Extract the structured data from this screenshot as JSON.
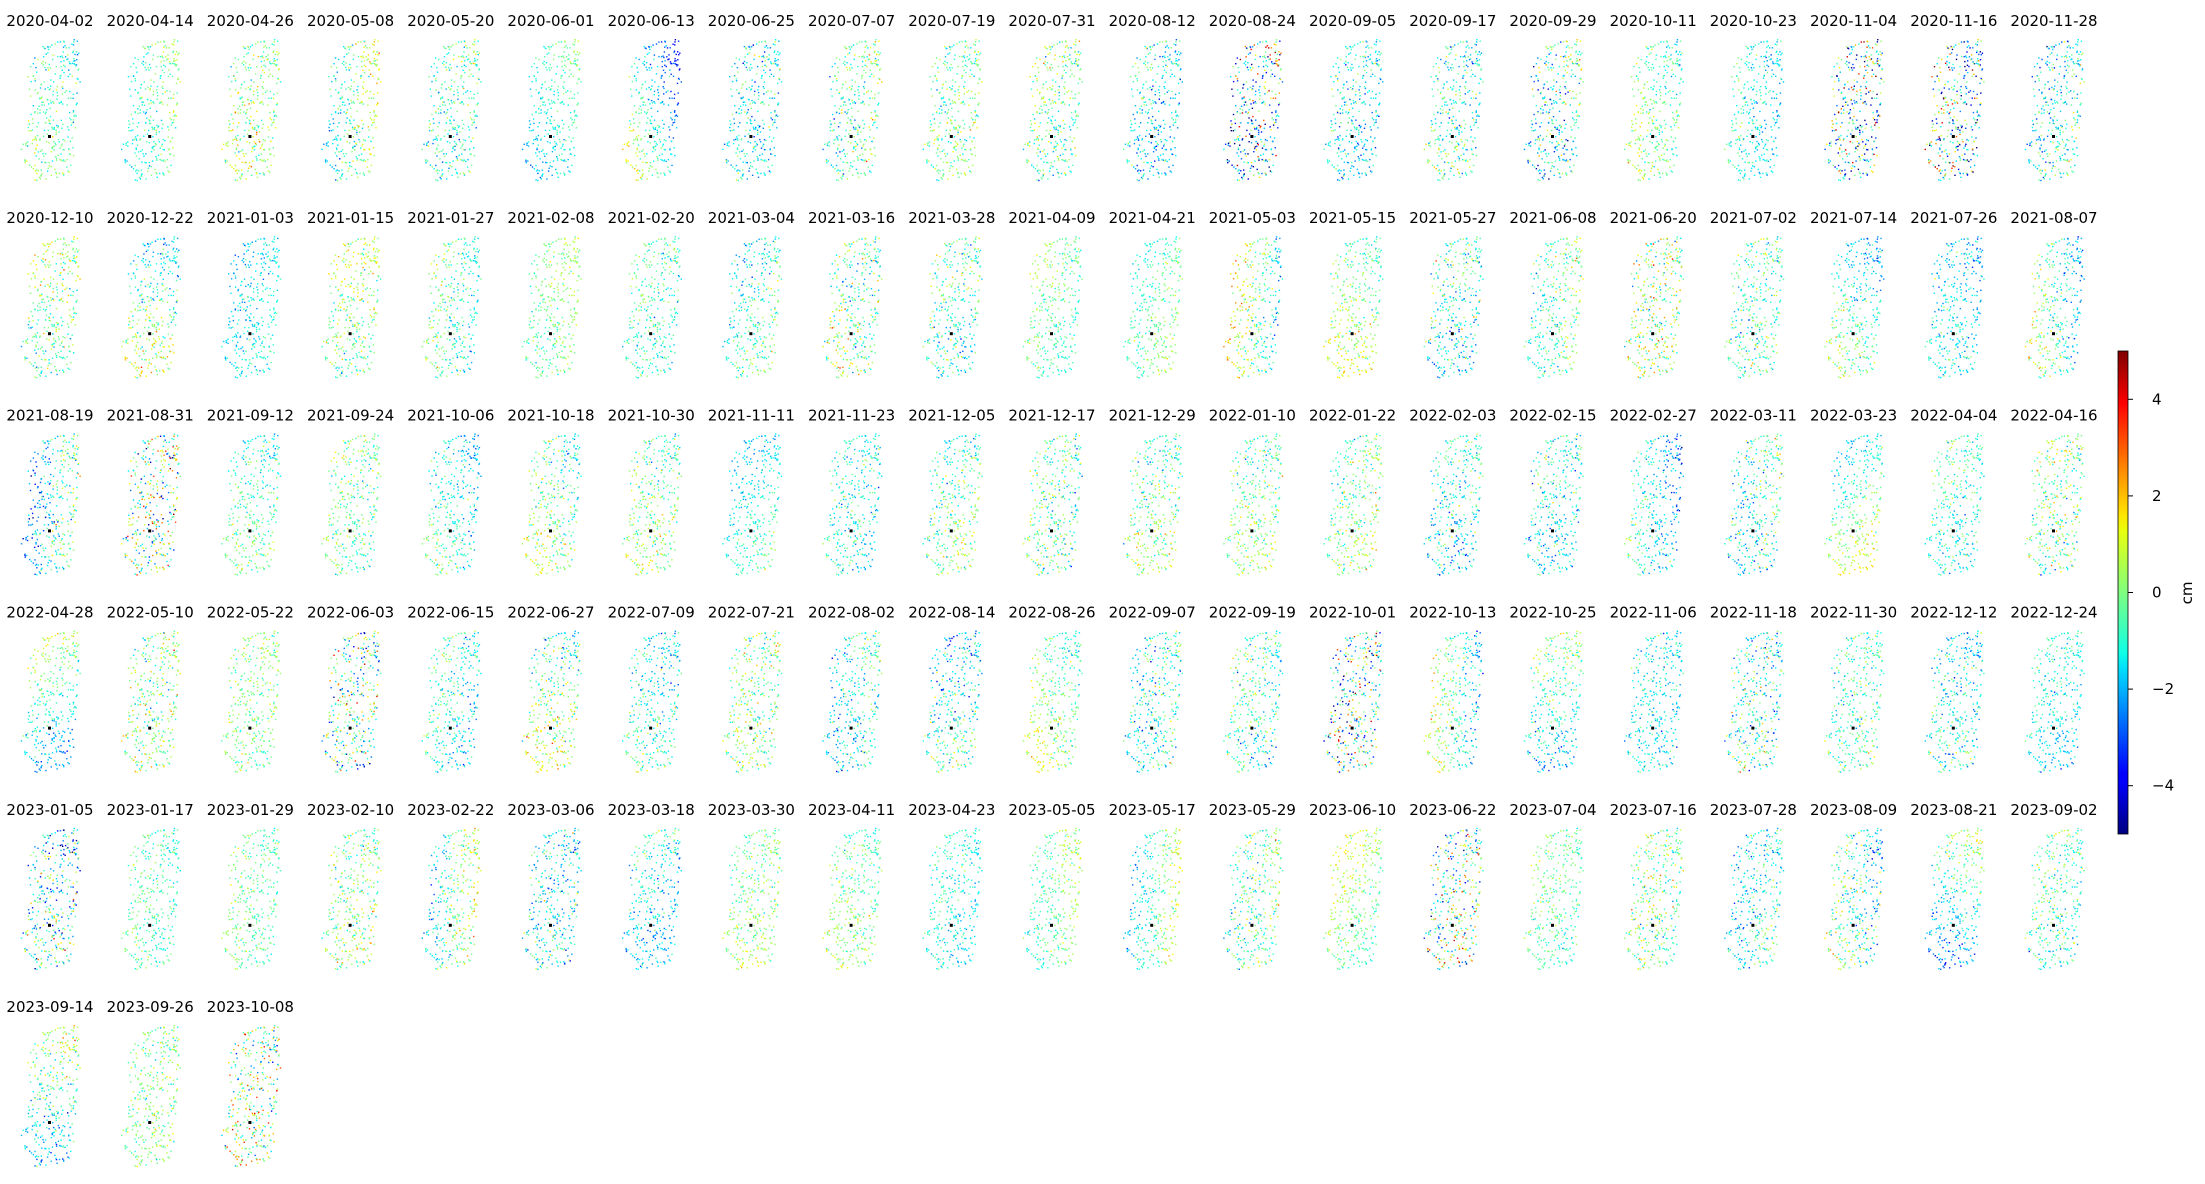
{
  "chart_data": {
    "type": "scatter",
    "panel_dates": [
      "2020-04-02",
      "2020-04-14",
      "2020-04-26",
      "2020-05-08",
      "2020-05-20",
      "2020-06-01",
      "2020-06-13",
      "2020-06-25",
      "2020-07-07",
      "2020-07-19",
      "2020-07-31",
      "2020-08-12",
      "2020-08-24",
      "2020-09-05",
      "2020-09-17",
      "2020-09-29",
      "2020-10-11",
      "2020-10-23",
      "2020-11-04",
      "2020-11-16",
      "2020-11-28",
      "2020-12-10",
      "2020-12-22",
      "2021-01-03",
      "2021-01-15",
      "2021-01-27",
      "2021-02-08",
      "2021-02-20",
      "2021-03-04",
      "2021-03-16",
      "2021-03-28",
      "2021-04-09",
      "2021-04-21",
      "2021-05-03",
      "2021-05-15",
      "2021-05-27",
      "2021-06-08",
      "2021-06-20",
      "2021-07-02",
      "2021-07-14",
      "2021-07-26",
      "2021-08-07",
      "2021-08-19",
      "2021-08-31",
      "2021-09-12",
      "2021-09-24",
      "2021-10-06",
      "2021-10-18",
      "2021-10-30",
      "2021-11-11",
      "2021-11-23",
      "2021-12-05",
      "2021-12-17",
      "2021-12-29",
      "2022-01-10",
      "2022-01-22",
      "2022-02-03",
      "2022-02-15",
      "2022-02-27",
      "2022-03-11",
      "2022-03-23",
      "2022-04-04",
      "2022-04-16",
      "2022-04-28",
      "2022-05-10",
      "2022-05-22",
      "2022-06-03",
      "2022-06-15",
      "2022-06-27",
      "2022-07-09",
      "2022-07-21",
      "2022-08-02",
      "2022-08-14",
      "2022-08-26",
      "2022-09-07",
      "2022-09-19",
      "2022-10-01",
      "2022-10-13",
      "2022-10-25",
      "2022-11-06",
      "2022-11-18",
      "2022-11-30",
      "2022-12-12",
      "2022-12-24",
      "2023-01-05",
      "2023-01-17",
      "2023-01-29",
      "2023-02-10",
      "2023-02-22",
      "2023-03-06",
      "2023-03-18",
      "2023-03-30",
      "2023-04-11",
      "2023-04-23",
      "2023-05-05",
      "2023-05-17",
      "2023-05-29",
      "2023-06-10",
      "2023-06-22",
      "2023-07-04",
      "2023-07-16",
      "2023-07-28",
      "2023-08-09",
      "2023-08-21",
      "2023-09-02",
      "2023-09-14",
      "2023-09-26",
      "2023-10-08"
    ],
    "panels_per_row": 21,
    "colorbar": {
      "label": "cm",
      "colormap": "jet",
      "vmin": -5,
      "vmax": 5,
      "ticks": [
        -4,
        -2,
        0,
        2,
        4
      ],
      "tick_labels": [
        "−4",
        "−2",
        "0",
        "2",
        "4"
      ]
    },
    "axes_visible": false
  }
}
